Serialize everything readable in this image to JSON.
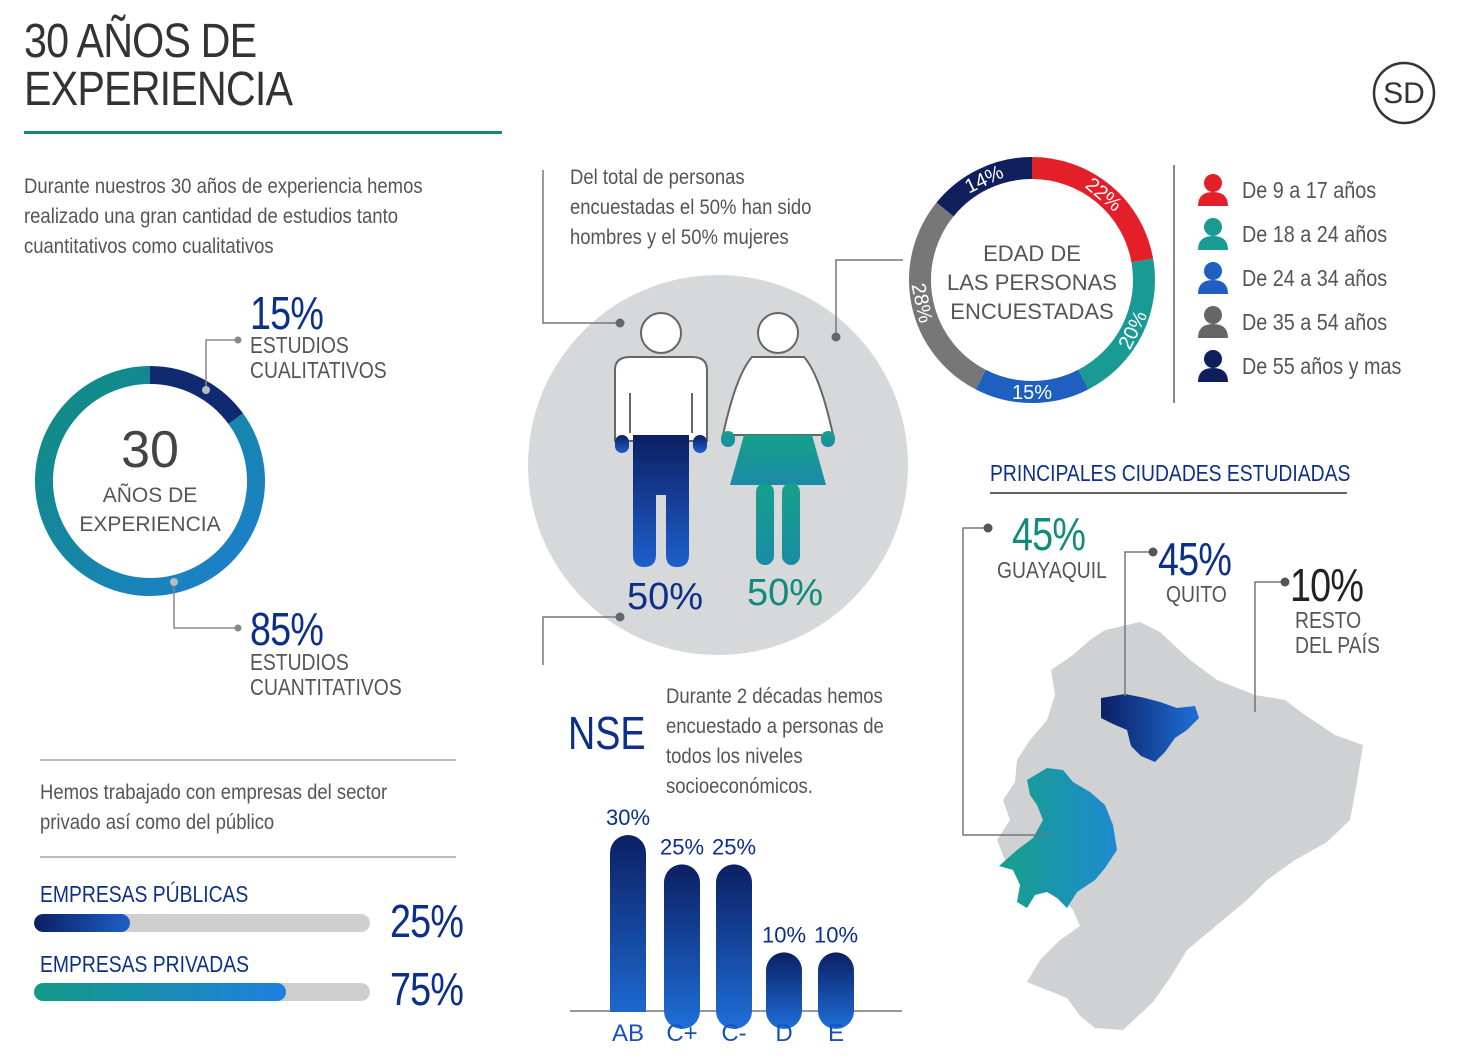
{
  "header": {
    "title_line1": "30 AÑOS DE",
    "title_line2": "EXPERIENCIA",
    "logo_text": "SD"
  },
  "intro": {
    "text_line1": "Durante nuestros 30 años de experiencia hemos",
    "text_line2": "realizado una gran cantidad de estudios tanto",
    "text_line3": "cuantitativos como cualitativos"
  },
  "studies": {
    "center_number": "30",
    "center_label1": "AÑOS DE",
    "center_label2": "EXPERIENCIA",
    "qual_pct": "15%",
    "qual_label1": "ESTUDIOS",
    "qual_label2": "CUALITATIVOS",
    "quant_pct": "85%",
    "quant_label1": "ESTUDIOS",
    "quant_label2": "CUANTITATIVOS"
  },
  "companies": {
    "text_line1": "Hemos trabajado con empresas del sector",
    "text_line2": "privado así como del público",
    "public_label": "EMPRESAS PÚBLICAS",
    "public_pct": "25%",
    "private_label": "EMPRESAS PRIVADAS",
    "private_pct": "75%"
  },
  "gender": {
    "text_line1": "Del total de personas",
    "text_line2": "encuestadas el  50% han sido",
    "text_line3": "hombres y el 50% mujeres",
    "men_pct": "50%",
    "women_pct": "50%"
  },
  "age": {
    "center1": "EDAD DE",
    "center2": "LAS PERSONAS",
    "center3": "ENCUESTADAS",
    "legend": [
      {
        "label": "De 9 a 17 años",
        "color": "#e3202a"
      },
      {
        "label": "De 18 a 24 años",
        "color": "#1a9a94"
      },
      {
        "label": "De 24 a 34 años",
        "color": "#1f5fc0"
      },
      {
        "label": "De 35 a 54 años",
        "color": "#666666"
      },
      {
        "label": "De 55 años y mas",
        "color": "#0f1f5c"
      }
    ]
  },
  "nse": {
    "heading": "NSE",
    "text_line1": "Durante 2 décadas hemos",
    "text_line2": "encuestado a personas de",
    "text_line3": "todos los niveles",
    "text_line4": "socioeconómicos."
  },
  "cities": {
    "heading": "PRINCIPALES CIUDADES ESTUDIADAS",
    "guayaquil_pct": "45%",
    "guayaquil_label": "GUAYAQUIL",
    "quito_pct": "45%",
    "quito_label": "QUITO",
    "rest_pct": "10%",
    "rest_label1": "RESTO",
    "rest_label2": "DEL PAÍS"
  },
  "chart_data": [
    {
      "type": "pie",
      "labels": [
        "ESTUDIOS CUALITATIVOS",
        "ESTUDIOS CUANTITATIVOS"
      ],
      "values": [
        15,
        85
      ],
      "colors": [
        "#0f2a70",
        "#1a8fa8"
      ]
    },
    {
      "type": "pie",
      "labels": [
        "De 9 a 17 años",
        "De 18 a 24 años",
        "De 24 a 34 años",
        "De 35 a 54 años",
        "De 55 años y mas"
      ],
      "values": [
        22,
        20,
        15,
        28,
        14
      ],
      "colors": [
        "#e3202a",
        "#1a9a94",
        "#1f5fc0",
        "#777777",
        "#0f1f5c"
      ],
      "slice_labels": [
        "22%",
        "20%",
        "15%",
        "28%",
        "14%"
      ]
    },
    {
      "type": "bar",
      "categories": [
        "AB",
        "C+",
        "C-",
        "D",
        "E"
      ],
      "values": [
        30,
        25,
        25,
        10,
        10
      ],
      "value_labels": [
        "30%",
        "25%",
        "25%",
        "10%",
        "10%"
      ],
      "ylim": [
        0,
        30
      ]
    },
    {
      "type": "bar",
      "categories": [
        "EMPRESAS PÚBLICAS",
        "EMPRESAS PRIVADAS"
      ],
      "values": [
        25,
        75
      ],
      "ylim": [
        0,
        100
      ]
    }
  ]
}
